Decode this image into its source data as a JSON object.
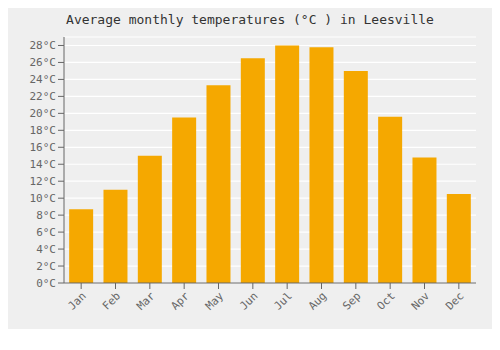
{
  "chart_data": {
    "type": "bar",
    "title": "Average monthly temperatures (°C ) in Leesville",
    "categories": [
      "Jan",
      "Feb",
      "Mar",
      "Apr",
      "May",
      "Jun",
      "Jul",
      "Aug",
      "Sep",
      "Oct",
      "Nov",
      "Dec"
    ],
    "values": [
      8.7,
      11.0,
      15.0,
      19.5,
      23.3,
      26.5,
      28.0,
      27.8,
      25.0,
      19.6,
      14.8,
      10.5
    ],
    "color": "#F5A800",
    "ylim": [
      0,
      29
    ],
    "yticks": [
      {
        "value": 0,
        "label": "0°C"
      },
      {
        "value": 2,
        "label": "2°C"
      },
      {
        "value": 4,
        "label": "4°C"
      },
      {
        "value": 6,
        "label": "6°C"
      },
      {
        "value": 8,
        "label": "8°C"
      },
      {
        "value": 10,
        "label": "10°C"
      },
      {
        "value": 12,
        "label": "12°C"
      },
      {
        "value": 14,
        "label": "14°C"
      },
      {
        "value": 16,
        "label": "16°C"
      },
      {
        "value": 18,
        "label": "18°C"
      },
      {
        "value": 20,
        "label": "20°C"
      },
      {
        "value": 22,
        "label": "22°C"
      },
      {
        "value": 24,
        "label": "24°C"
      },
      {
        "value": 26,
        "label": "26°C"
      },
      {
        "value": 28,
        "label": "28°C"
      }
    ],
    "grid": true
  }
}
